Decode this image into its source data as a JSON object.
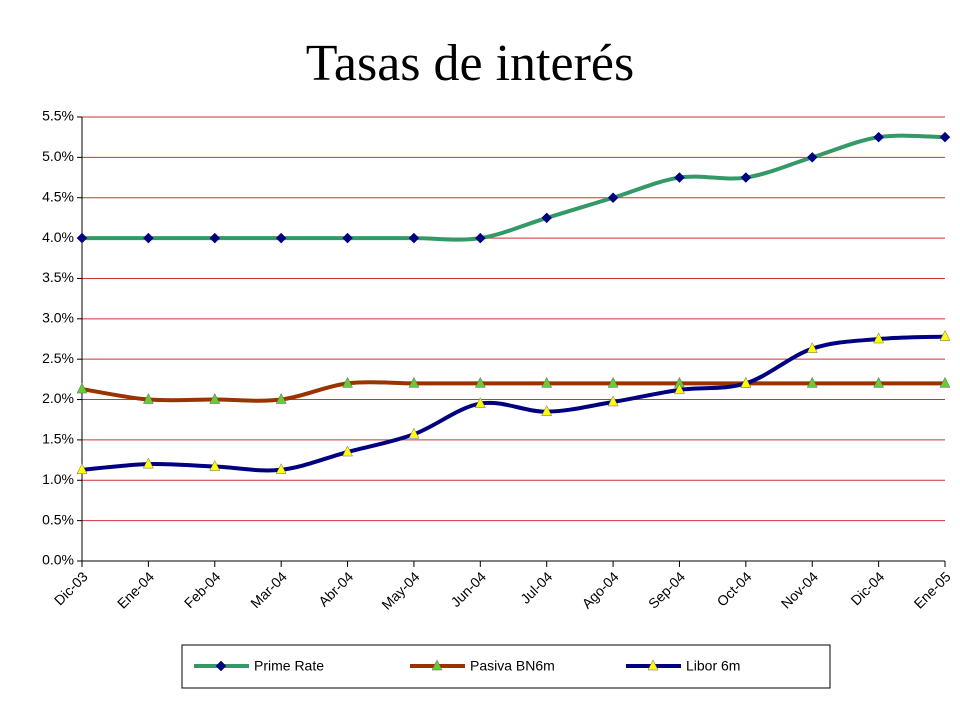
{
  "chart_data": {
    "type": "line",
    "title": "Tasas de interés",
    "categories": [
      "Dic-03",
      "Ene-04",
      "Feb-04",
      "Mar-04",
      "Abr-04",
      "May-04",
      "Jun-04",
      "Jul-04",
      "Ago-04",
      "Sep-04",
      "Oct-04",
      "Nov-04",
      "Dic-04",
      "Ene-05"
    ],
    "series": [
      {
        "name": "Prime Rate",
        "color": "#339966",
        "marker": "diamond",
        "marker_color": "#000080",
        "values": [
          4.0,
          4.0,
          4.0,
          4.0,
          4.0,
          4.0,
          4.0,
          4.25,
          4.5,
          4.75,
          4.75,
          5.0,
          5.25,
          5.25
        ]
      },
      {
        "name": "Pasiva BN6m",
        "color": "#993300",
        "marker": "triangle",
        "marker_color": "#66cc33",
        "values": [
          2.13,
          2.0,
          2.0,
          2.0,
          2.2,
          2.2,
          2.2,
          2.2,
          2.2,
          2.2,
          2.2,
          2.2,
          2.2,
          2.2
        ]
      },
      {
        "name": "Libor 6m",
        "color": "#000080",
        "marker": "triangle",
        "marker_color": "#ffff00",
        "values": [
          1.13,
          1.2,
          1.17,
          1.13,
          1.35,
          1.57,
          1.95,
          1.85,
          1.97,
          2.12,
          2.2,
          2.63,
          2.75,
          2.78
        ]
      }
    ],
    "ylim": [
      0,
      5.5
    ],
    "yticks": [
      {
        "value": 0,
        "label": "0.0%"
      },
      {
        "value": 0.5,
        "label": "0.5%"
      },
      {
        "value": 1,
        "label": "1.0%"
      },
      {
        "value": 1.5,
        "label": "1.5%"
      },
      {
        "value": 2,
        "label": "2.0%"
      },
      {
        "value": 2.5,
        "label": "2.5%"
      },
      {
        "value": 3,
        "label": "3.0%"
      },
      {
        "value": 3.5,
        "label": "3.5%"
      },
      {
        "value": 4,
        "label": "4.0%"
      },
      {
        "value": 4.5,
        "label": "4.5%"
      },
      {
        "value": 5,
        "label": "5.0%"
      },
      {
        "value": 5.5,
        "label": "5.5%"
      }
    ],
    "grid": true,
    "grid_color": "#cc3333",
    "legend": "bottom"
  }
}
